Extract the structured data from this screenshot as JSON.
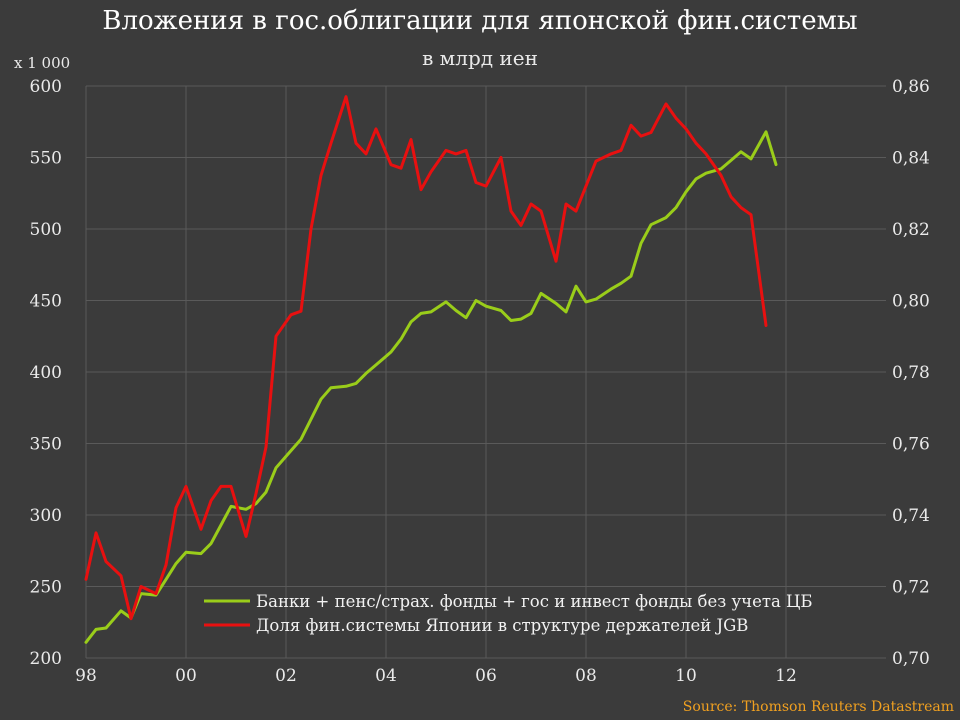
{
  "title": "Вложения в гос.облигации для японской фин.системы",
  "subtitle": "в млрд иен",
  "source": "Source: Thomson Reuters Datastream",
  "colors": {
    "background": "#3b3b3b",
    "grid": "#5a5a5a",
    "series_green": "#9acd1a",
    "series_red": "#e81010",
    "source_text": "#f0a020"
  },
  "chart_data": {
    "type": "line",
    "title": "Вложения в гос.облигации для японской фин.системы",
    "subtitle": "в млрд иен",
    "left_axis": {
      "unit_label": "x 1 000",
      "range": [
        200,
        600
      ],
      "ticks": [
        "200",
        "250",
        "300",
        "350",
        "400",
        "450",
        "500",
        "550",
        "600"
      ]
    },
    "right_axis": {
      "range": [
        0.7,
        0.86
      ],
      "ticks": [
        "0,70",
        "0,72",
        "0,74",
        "0,76",
        "0,78",
        "0,80",
        "0,82",
        "0,84",
        "0,86"
      ]
    },
    "x_axis": {
      "range": [
        1998,
        2014
      ],
      "ticks": [
        {
          "value": 1998,
          "label": "98"
        },
        {
          "value": 2000,
          "label": "00"
        },
        {
          "value": 2002,
          "label": "02"
        },
        {
          "value": 2004,
          "label": "04"
        },
        {
          "value": 2006,
          "label": "06"
        },
        {
          "value": 2008,
          "label": "08"
        },
        {
          "value": 2010,
          "label": "10"
        },
        {
          "value": 2012,
          "label": "12"
        }
      ]
    },
    "grid": true,
    "legend_position": "bottom-right",
    "series": [
      {
        "name": "Банки + пенс/страх. фонды +  гос и инвест фонды без учета ЦБ",
        "axis": "left",
        "color": "#9acd1a",
        "points": [
          [
            1998.0,
            211
          ],
          [
            1998.2,
            220
          ],
          [
            1998.4,
            221
          ],
          [
            1998.7,
            233
          ],
          [
            1998.9,
            228
          ],
          [
            1999.1,
            245
          ],
          [
            1999.4,
            244
          ],
          [
            1999.6,
            255
          ],
          [
            1999.8,
            266
          ],
          [
            2000.0,
            274
          ],
          [
            2000.3,
            273
          ],
          [
            2000.5,
            280
          ],
          [
            2000.7,
            293
          ],
          [
            2000.9,
            306
          ],
          [
            2001.2,
            304
          ],
          [
            2001.4,
            308
          ],
          [
            2001.6,
            316
          ],
          [
            2001.8,
            333
          ],
          [
            2002.1,
            345
          ],
          [
            2002.3,
            353
          ],
          [
            2002.5,
            367
          ],
          [
            2002.7,
            381
          ],
          [
            2002.9,
            389
          ],
          [
            2003.2,
            390
          ],
          [
            2003.4,
            392
          ],
          [
            2003.6,
            399
          ],
          [
            2003.8,
            405
          ],
          [
            2004.1,
            414
          ],
          [
            2004.3,
            423
          ],
          [
            2004.5,
            435
          ],
          [
            2004.7,
            441
          ],
          [
            2004.9,
            442
          ],
          [
            2005.2,
            449
          ],
          [
            2005.4,
            443
          ],
          [
            2005.6,
            438
          ],
          [
            2005.8,
            450
          ],
          [
            2006.0,
            446
          ],
          [
            2006.3,
            443
          ],
          [
            2006.5,
            436
          ],
          [
            2006.7,
            437
          ],
          [
            2006.9,
            441
          ],
          [
            2007.1,
            455
          ],
          [
            2007.4,
            448
          ],
          [
            2007.6,
            442
          ],
          [
            2007.8,
            460
          ],
          [
            2008.0,
            449
          ],
          [
            2008.2,
            451
          ],
          [
            2008.5,
            458
          ],
          [
            2008.7,
            462
          ],
          [
            2008.9,
            467
          ],
          [
            2009.1,
            490
          ],
          [
            2009.3,
            503
          ],
          [
            2009.6,
            508
          ],
          [
            2009.8,
            515
          ],
          [
            2010.0,
            526
          ],
          [
            2010.2,
            535
          ],
          [
            2010.4,
            539
          ],
          [
            2010.7,
            542
          ],
          [
            2010.9,
            548
          ],
          [
            2011.1,
            554
          ],
          [
            2011.3,
            549
          ],
          [
            2011.6,
            568
          ],
          [
            2011.8,
            545
          ]
        ]
      },
      {
        "name": "Доля фин.системы Японии в структуре держателей JGB",
        "axis": "right",
        "color": "#e81010",
        "points": [
          [
            1998.0,
            0.722
          ],
          [
            1998.2,
            0.735
          ],
          [
            1998.4,
            0.727
          ],
          [
            1998.7,
            0.723
          ],
          [
            1998.9,
            0.711
          ],
          [
            1999.1,
            0.72
          ],
          [
            1999.4,
            0.718
          ],
          [
            1999.6,
            0.726
          ],
          [
            1999.8,
            0.742
          ],
          [
            2000.0,
            0.748
          ],
          [
            2000.3,
            0.736
          ],
          [
            2000.5,
            0.744
          ],
          [
            2000.7,
            0.748
          ],
          [
            2000.9,
            0.748
          ],
          [
            2001.2,
            0.734
          ],
          [
            2001.4,
            0.746
          ],
          [
            2001.6,
            0.759
          ],
          [
            2001.8,
            0.79
          ],
          [
            2002.1,
            0.796
          ],
          [
            2002.3,
            0.797
          ],
          [
            2002.5,
            0.82
          ],
          [
            2002.7,
            0.835
          ],
          [
            2002.9,
            0.844
          ],
          [
            2003.2,
            0.857
          ],
          [
            2003.4,
            0.844
          ],
          [
            2003.6,
            0.841
          ],
          [
            2003.8,
            0.848
          ],
          [
            2004.1,
            0.838
          ],
          [
            2004.3,
            0.837
          ],
          [
            2004.5,
            0.845
          ],
          [
            2004.7,
            0.831
          ],
          [
            2004.9,
            0.836
          ],
          [
            2005.2,
            0.842
          ],
          [
            2005.4,
            0.841
          ],
          [
            2005.6,
            0.842
          ],
          [
            2005.8,
            0.833
          ],
          [
            2006.0,
            0.832
          ],
          [
            2006.3,
            0.84
          ],
          [
            2006.5,
            0.825
          ],
          [
            2006.7,
            0.821
          ],
          [
            2006.9,
            0.827
          ],
          [
            2007.1,
            0.825
          ],
          [
            2007.4,
            0.811
          ],
          [
            2007.6,
            0.827
          ],
          [
            2007.8,
            0.825
          ],
          [
            2008.0,
            0.832
          ],
          [
            2008.2,
            0.839
          ],
          [
            2008.5,
            0.841
          ],
          [
            2008.7,
            0.842
          ],
          [
            2008.9,
            0.849
          ],
          [
            2009.1,
            0.846
          ],
          [
            2009.3,
            0.847
          ],
          [
            2009.6,
            0.855
          ],
          [
            2009.8,
            0.851
          ],
          [
            2010.0,
            0.848
          ],
          [
            2010.2,
            0.844
          ],
          [
            2010.4,
            0.841
          ],
          [
            2010.7,
            0.835
          ],
          [
            2010.9,
            0.829
          ],
          [
            2011.1,
            0.826
          ],
          [
            2011.3,
            0.824
          ],
          [
            2011.6,
            0.793
          ]
        ]
      }
    ]
  }
}
